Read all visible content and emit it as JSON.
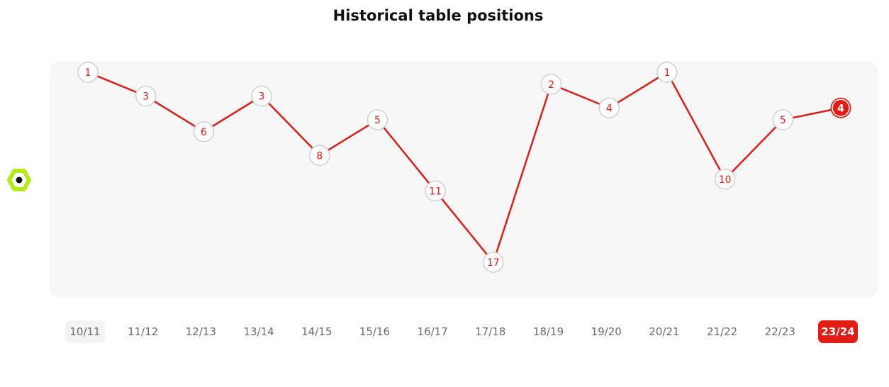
{
  "title": "Historical table positions",
  "colors": {
    "line": "#dc1f18",
    "accent": "#e21b14",
    "marker_fill": "#ffffff",
    "marker_border": "#cfcfcf",
    "plot_background": "#f7f7f7",
    "logo": "#b7ea1c"
  },
  "icons": {
    "league_logo": "league-logo-icon"
  },
  "chart_data": {
    "type": "line",
    "title": "Historical table positions",
    "xlabel": "",
    "ylabel": "",
    "y_inverted": true,
    "grid": false,
    "categories": [
      "10/11",
      "11/12",
      "12/13",
      "13/14",
      "14/15",
      "15/16",
      "16/17",
      "17/18",
      "18/19",
      "19/20",
      "20/21",
      "21/22",
      "22/23",
      "23/24"
    ],
    "series": [
      {
        "values": [
          1,
          3,
          6,
          3,
          8,
          5,
          11,
          17,
          2,
          4,
          1,
          10,
          5,
          4
        ]
      }
    ],
    "highlighted_category": "23/24"
  }
}
